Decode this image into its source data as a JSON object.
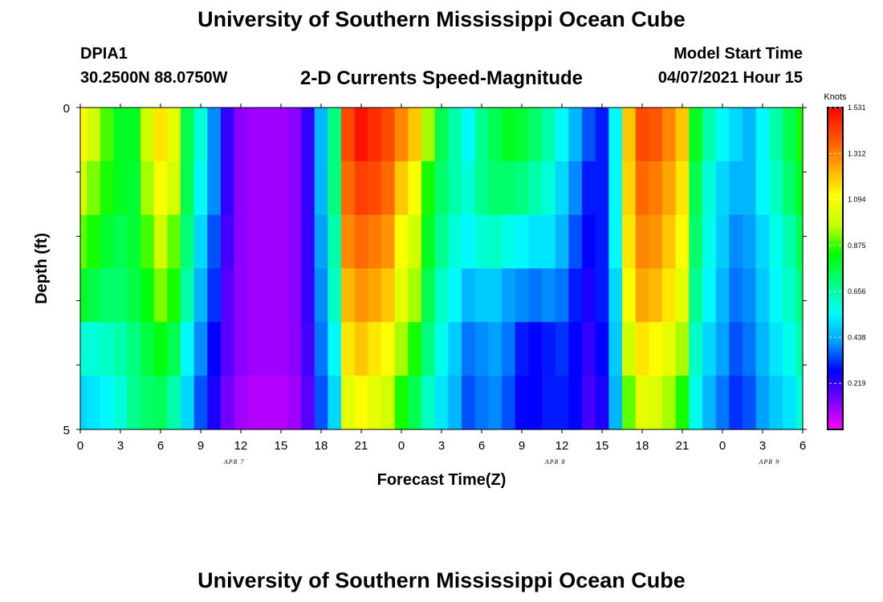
{
  "header": {
    "title": "University of Southern Mississippi Ocean Cube",
    "station_id": "DPIA1",
    "station_coords": "30.2500N  88.0750W",
    "product": "2-D Currents Speed-Magnitude",
    "model_start_label": "Model Start Time",
    "model_start_value": "04/07/2021 Hour 15"
  },
  "footer": {
    "title": "University of Southern Mississippi Ocean Cube"
  },
  "chart_data": {
    "type": "heatmap",
    "xlabel": "Forecast Time(Z)",
    "ylabel": "Depth (ft)",
    "x_tick_labels": [
      "0",
      "3",
      "6",
      "9",
      "12",
      "15",
      "18",
      "21",
      "0",
      "3",
      "6",
      "9",
      "12",
      "15",
      "18",
      "21",
      "0",
      "3",
      "6"
    ],
    "date_labels": [
      {
        "label": "APR 7",
        "hour": 11.5
      },
      {
        "label": "APR 8",
        "hour": 35.5
      },
      {
        "label": "APR 9",
        "hour": 51.5
      }
    ],
    "x_range_hours": [
      0,
      54
    ],
    "y_tick_labels": [
      "0",
      "5"
    ],
    "ylim": [
      0,
      5
    ],
    "colorbar": {
      "title": "Knots",
      "ticks": [
        "1.531",
        "1.312",
        "1.094",
        "0.875",
        "0.656",
        "0.438",
        "0.219"
      ],
      "range": [
        0,
        1.531
      ],
      "stops": [
        "#ff00ff",
        "#7a00ff",
        "#0000ff",
        "#00a0ff",
        "#00ffff",
        "#00ff80",
        "#00ff00",
        "#c8ff00",
        "#ffff00",
        "#ffa500",
        "#ff5000",
        "#ff0000"
      ]
    },
    "depth_layers_ft": [
      0,
      1,
      2,
      3,
      4,
      5
    ],
    "hours": [
      0,
      1,
      2,
      3,
      4,
      5,
      6,
      7,
      8,
      9,
      10,
      11,
      12,
      13,
      14,
      15,
      16,
      17,
      18,
      19,
      20,
      21,
      22,
      23,
      24,
      25,
      26,
      27,
      28,
      29,
      30,
      31,
      32,
      33,
      34,
      35,
      36,
      37,
      38,
      39,
      40,
      41,
      42,
      43,
      44,
      45,
      46,
      47,
      48,
      49,
      50,
      51,
      52,
      53,
      54
    ],
    "speed_knots": [
      [
        1.1,
        1.0,
        0.88,
        0.8,
        0.8,
        1.0,
        1.15,
        1.05,
        0.75,
        0.6,
        0.4,
        0.22,
        0.12,
        0.1,
        0.1,
        0.1,
        0.12,
        0.22,
        0.45,
        0.7,
        1.4,
        1.5,
        1.45,
        1.4,
        1.3,
        1.2,
        0.95,
        0.75,
        0.65,
        0.55,
        0.68,
        0.75,
        0.8,
        0.78,
        0.72,
        0.65,
        0.55,
        0.45,
        0.35,
        0.3,
        0.55,
        1.2,
        1.4,
        1.38,
        1.3,
        1.2,
        0.8,
        0.65,
        0.55,
        0.5,
        0.45,
        0.55,
        0.65,
        0.75,
        0.85
      ],
      [
        1.0,
        0.92,
        0.85,
        0.8,
        0.78,
        0.95,
        1.1,
        1.0,
        0.75,
        0.55,
        0.4,
        0.22,
        0.12,
        0.1,
        0.1,
        0.1,
        0.12,
        0.22,
        0.45,
        0.7,
        1.35,
        1.42,
        1.4,
        1.35,
        1.2,
        1.1,
        0.85,
        0.72,
        0.65,
        0.6,
        0.68,
        0.72,
        0.72,
        0.7,
        0.65,
        0.6,
        0.5,
        0.4,
        0.3,
        0.3,
        0.55,
        1.18,
        1.35,
        1.32,
        1.25,
        1.15,
        0.75,
        0.6,
        0.5,
        0.45,
        0.45,
        0.55,
        0.62,
        0.72,
        0.8
      ],
      [
        0.9,
        0.85,
        0.78,
        0.75,
        0.78,
        0.88,
        1.0,
        0.9,
        0.7,
        0.5,
        0.35,
        0.2,
        0.12,
        0.1,
        0.1,
        0.1,
        0.12,
        0.22,
        0.42,
        0.65,
        1.3,
        1.35,
        1.32,
        1.28,
        1.1,
        1.0,
        0.8,
        0.68,
        0.6,
        0.55,
        0.6,
        0.62,
        0.58,
        0.55,
        0.52,
        0.52,
        0.45,
        0.35,
        0.28,
        0.3,
        0.55,
        1.15,
        1.3,
        1.28,
        1.2,
        1.1,
        0.72,
        0.58,
        0.48,
        0.4,
        0.42,
        0.5,
        0.58,
        0.65,
        0.75
      ],
      [
        0.8,
        0.76,
        0.72,
        0.72,
        0.76,
        0.82,
        0.92,
        0.85,
        0.65,
        0.45,
        0.32,
        0.18,
        0.12,
        0.1,
        0.1,
        0.1,
        0.12,
        0.22,
        0.4,
        0.62,
        1.22,
        1.28,
        1.25,
        1.2,
        1.05,
        0.95,
        0.75,
        0.62,
        0.55,
        0.45,
        0.48,
        0.48,
        0.42,
        0.4,
        0.38,
        0.4,
        0.38,
        0.3,
        0.25,
        0.3,
        0.5,
        1.1,
        1.25,
        1.22,
        1.15,
        1.05,
        0.68,
        0.55,
        0.45,
        0.38,
        0.4,
        0.48,
        0.55,
        0.62,
        0.7
      ],
      [
        0.6,
        0.6,
        0.62,
        0.65,
        0.7,
        0.76,
        0.82,
        0.75,
        0.55,
        0.4,
        0.28,
        0.18,
        0.12,
        0.1,
        0.1,
        0.1,
        0.12,
        0.2,
        0.38,
        0.55,
        1.15,
        1.2,
        1.15,
        1.1,
        0.95,
        0.85,
        0.7,
        0.58,
        0.48,
        0.38,
        0.4,
        0.42,
        0.38,
        0.3,
        0.28,
        0.3,
        0.32,
        0.28,
        0.22,
        0.28,
        0.48,
        1.0,
        1.15,
        1.12,
        1.05,
        0.95,
        0.62,
        0.5,
        0.42,
        0.35,
        0.38,
        0.45,
        0.52,
        0.58,
        0.65
      ],
      [
        0.5,
        0.52,
        0.55,
        0.6,
        0.68,
        0.72,
        0.74,
        0.65,
        0.5,
        0.35,
        0.25,
        0.15,
        0.1,
        0.08,
        0.08,
        0.08,
        0.1,
        0.18,
        0.35,
        0.5,
        1.05,
        1.1,
        1.05,
        1.0,
        0.85,
        0.75,
        0.62,
        0.52,
        0.45,
        0.35,
        0.38,
        0.4,
        0.35,
        0.28,
        0.28,
        0.3,
        0.3,
        0.28,
        0.2,
        0.25,
        0.45,
        0.9,
        1.05,
        1.02,
        0.95,
        0.85,
        0.58,
        0.45,
        0.38,
        0.32,
        0.35,
        0.42,
        0.48,
        0.52,
        0.6
      ]
    ]
  }
}
